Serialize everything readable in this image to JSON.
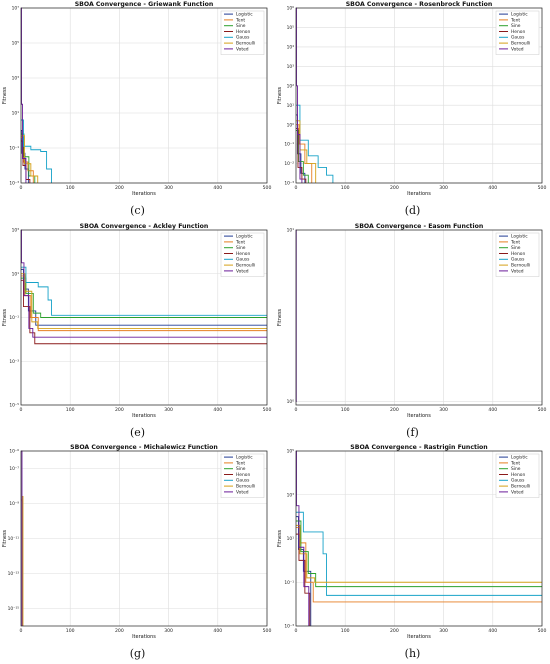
{
  "line_colors": {
    "Logistic": "#1f3a93",
    "Tent": "#e67e22",
    "Sine": "#2ca02c",
    "Henon": "#8b1a1a",
    "Gauss": "#17a2c8",
    "Bernoulli": "#d4a017",
    "Voted": "#6a1b9a"
  },
  "chart_data": [
    {
      "type": "line",
      "title": "SBOA Convergence - Griewank Function",
      "xlabel": "Iterations",
      "ylabel": "Fitness",
      "caption": "(c)",
      "yscale": "log",
      "xlim": [
        0,
        500
      ],
      "ylim_exp": [
        -3,
        7
      ],
      "xticks": [
        "0",
        "100",
        "200",
        "300",
        "400",
        "500"
      ],
      "yticks": [
        {
          "exp": -3,
          "label": "10⁻³"
        },
        {
          "exp": -1,
          "label": "10⁻¹"
        },
        {
          "exp": 1,
          "label": "10¹"
        },
        {
          "exp": 3,
          "label": "10³"
        },
        {
          "exp": 5,
          "label": "10⁵"
        },
        {
          "exp": 7,
          "label": "10⁷"
        }
      ],
      "legend": "top-right",
      "series": [
        {
          "name": "Logistic",
          "points": [
            [
              0,
              0
            ],
            [
              2,
              -1.3
            ],
            [
              8,
              -2.2
            ],
            [
              15,
              -3
            ]
          ]
        },
        {
          "name": "Tent",
          "points": [
            [
              0,
              -0.4
            ],
            [
              5,
              -1.8
            ],
            [
              14,
              -2.3
            ],
            [
              25,
              -3
            ]
          ]
        },
        {
          "name": "Sine",
          "points": [
            [
              0,
              -0.2
            ],
            [
              6,
              -1.5
            ],
            [
              16,
              -2.6
            ],
            [
              28,
              -3
            ]
          ]
        },
        {
          "name": "Henon",
          "points": [
            [
              0,
              -0.6
            ],
            [
              4,
              -2.0
            ],
            [
              10,
              -2.8
            ],
            [
              18,
              -3
            ]
          ]
        },
        {
          "name": "Gauss",
          "points": [
            [
              0,
              0.6
            ],
            [
              5,
              -0.9
            ],
            [
              20,
              -1.1
            ],
            [
              40,
              -1.2
            ],
            [
              52,
              -2.2
            ],
            [
              62,
              -3
            ]
          ]
        },
        {
          "name": "Bernoulli",
          "points": [
            [
              0,
              -0.3
            ],
            [
              7,
              -1.9
            ],
            [
              20,
              -2.6
            ],
            [
              34,
              -3
            ]
          ]
        },
        {
          "name": "Voted",
          "points": [
            [
              0,
              7
            ],
            [
              1,
              1.5
            ],
            [
              3,
              -1.6
            ],
            [
              10,
              -3
            ]
          ]
        }
      ]
    },
    {
      "type": "line",
      "title": "SBOA Convergence - Rosenbrock Function",
      "xlabel": "Iterations",
      "ylabel": "Fitness",
      "caption": "(d)",
      "yscale": "log",
      "xlim": [
        0,
        500
      ],
      "ylim_exp": [
        -3,
        6
      ],
      "xticks": [
        "0",
        "100",
        "200",
        "300",
        "400",
        "500"
      ],
      "yticks": [
        {
          "exp": -3,
          "label": "10⁻³"
        },
        {
          "exp": -2,
          "label": "10⁻²"
        },
        {
          "exp": -1,
          "label": "10⁻¹"
        },
        {
          "exp": 0,
          "label": "10⁰"
        },
        {
          "exp": 1,
          "label": "10¹"
        },
        {
          "exp": 2,
          "label": "10²"
        },
        {
          "exp": 3,
          "label": "10³"
        },
        {
          "exp": 4,
          "label": "10⁴"
        },
        {
          "exp": 5,
          "label": "10⁵"
        },
        {
          "exp": 6,
          "label": "10⁶"
        }
      ],
      "legend": "top-right",
      "series": [
        {
          "name": "Logistic",
          "points": [
            [
              0,
              0.5
            ],
            [
              3,
              -1.5
            ],
            [
              10,
              -2.5
            ],
            [
              18,
              -3
            ]
          ]
        },
        {
          "name": "Tent",
          "points": [
            [
              0,
              0
            ],
            [
              6,
              -1.0
            ],
            [
              18,
              -2.0
            ],
            [
              32,
              -3
            ]
          ]
        },
        {
          "name": "Sine",
          "points": [
            [
              0,
              -0.3
            ],
            [
              5,
              -1.9
            ],
            [
              15,
              -2.6
            ],
            [
              25,
              -3
            ]
          ]
        },
        {
          "name": "Henon",
          "points": [
            [
              0,
              -0.2
            ],
            [
              4,
              -2.2
            ],
            [
              12,
              -2.8
            ],
            [
              20,
              -3
            ]
          ]
        },
        {
          "name": "Gauss",
          "points": [
            [
              0,
              1
            ],
            [
              8,
              -0.8
            ],
            [
              25,
              -1.6
            ],
            [
              45,
              -2.2
            ],
            [
              62,
              -2.6
            ],
            [
              75,
              -3
            ]
          ]
        },
        {
          "name": "Bernoulli",
          "points": [
            [
              0,
              0.2
            ],
            [
              8,
              -1.3
            ],
            [
              22,
              -2.0
            ],
            [
              40,
              -3
            ]
          ]
        },
        {
          "name": "Voted",
          "points": [
            [
              0,
              6
            ],
            [
              1,
              2
            ],
            [
              3,
              -0.5
            ],
            [
              8,
              -2.8
            ],
            [
              12,
              -3
            ]
          ]
        }
      ]
    },
    {
      "type": "line",
      "title": "SBOA Convergence - Ackley Function",
      "xlabel": "Iterations",
      "ylabel": "Fitness",
      "caption": "(e)",
      "yscale": "log",
      "xlim": [
        0,
        500
      ],
      "ylim_exp": [
        -5,
        3
      ],
      "xticks": [
        "0",
        "100",
        "200",
        "300",
        "400",
        "500"
      ],
      "yticks": [
        {
          "exp": -5,
          "label": "10⁻⁵"
        },
        {
          "exp": -3,
          "label": "10⁻³"
        },
        {
          "exp": -1,
          "label": "10⁻¹"
        },
        {
          "exp": 1,
          "label": "10¹"
        },
        {
          "exp": 3,
          "label": "10³"
        }
      ],
      "legend": "top-right",
      "series": [
        {
          "name": "Logistic",
          "points": [
            [
              0,
              1.2
            ],
            [
              5,
              0.3
            ],
            [
              15,
              -0.7
            ],
            [
              30,
              -1.35
            ],
            [
              500,
              -1.35
            ]
          ]
        },
        {
          "name": "Tent",
          "points": [
            [
              0,
              0.9
            ],
            [
              8,
              0
            ],
            [
              20,
              -1.0
            ],
            [
              35,
              -1.6
            ],
            [
              500,
              -1.6
            ]
          ]
        },
        {
          "name": "Sine",
          "points": [
            [
              0,
              0.8
            ],
            [
              10,
              0.1
            ],
            [
              25,
              -0.8
            ],
            [
              40,
              -1.0
            ],
            [
              500,
              -1.0
            ]
          ]
        },
        {
          "name": "Henon",
          "points": [
            [
              0,
              0.7
            ],
            [
              5,
              -0.5
            ],
            [
              18,
              -1.7
            ],
            [
              28,
              -2.2
            ],
            [
              500,
              -2.2
            ]
          ]
        },
        {
          "name": "Gauss",
          "points": [
            [
              0,
              1.3
            ],
            [
              10,
              0.6
            ],
            [
              35,
              0.4
            ],
            [
              55,
              -0.2
            ],
            [
              62,
              -0.9
            ],
            [
              500,
              -0.9
            ]
          ]
        },
        {
          "name": "Bernoulli",
          "points": [
            [
              0,
              1.0
            ],
            [
              8,
              0.2
            ],
            [
              22,
              -1.2
            ],
            [
              34,
              -1.5
            ],
            [
              500,
              -1.5
            ]
          ]
        },
        {
          "name": "Voted",
          "points": [
            [
              0,
              3
            ],
            [
              1,
              1.5
            ],
            [
              6,
              0
            ],
            [
              16,
              -1.5
            ],
            [
              24,
              -1.9
            ],
            [
              500,
              -1.9
            ]
          ]
        }
      ]
    },
    {
      "type": "line",
      "title": "SBOA Convergence - Easom Function",
      "xlabel": "Iterations",
      "ylabel": "Fitness",
      "caption": "(f)",
      "yscale": "log",
      "xlim": [
        0,
        500
      ],
      "ylim_exp": [
        -0.02,
        1
      ],
      "xticks": [
        "0",
        "100",
        "200",
        "300",
        "400",
        "500"
      ],
      "yticks": [
        {
          "exp": 0,
          "label": "10⁰"
        },
        {
          "exp": 1,
          "label": "10¹"
        }
      ],
      "legend": "top-right",
      "series": [
        {
          "name": "Voted",
          "points": [
            [
              0,
              0
            ],
            [
              0.5,
              1
            ],
            [
              1,
              1
            ]
          ]
        }
      ]
    },
    {
      "type": "line",
      "title": "SBOA Convergence - Michalewicz Function",
      "xlabel": "Iterations",
      "ylabel": "Fitness",
      "caption": "(g)",
      "yscale": "log",
      "xlim": [
        0,
        500
      ],
      "ylim_exp": [
        -16,
        -6
      ],
      "xticks": [
        "0",
        "100",
        "200",
        "300",
        "400",
        "500"
      ],
      "yticks": [
        {
          "exp": -15,
          "label": "10⁻¹⁵"
        },
        {
          "exp": -13,
          "label": "10⁻¹³"
        },
        {
          "exp": -11,
          "label": "10⁻¹¹"
        },
        {
          "exp": -9,
          "label": "10⁻⁹"
        },
        {
          "exp": -7,
          "label": "10⁻⁷"
        },
        {
          "exp": -6,
          "label": "10⁻⁶"
        }
      ],
      "legend": "top-right",
      "series": [
        {
          "name": "Tent",
          "points": [
            [
              0,
              -8.8
            ],
            [
              2,
              -8.9
            ],
            [
              3,
              -16
            ]
          ]
        },
        {
          "name": "Bernoulli",
          "points": [
            [
              0,
              -8.8
            ],
            [
              2,
              -8.6
            ],
            [
              4,
              -16
            ]
          ]
        },
        {
          "name": "Voted",
          "points": [
            [
              0,
              -6
            ],
            [
              1,
              -6
            ],
            [
              2,
              -16
            ]
          ]
        }
      ]
    },
    {
      "type": "line",
      "title": "SBOA Convergence - Rastrigin Function",
      "xlabel": "Iterations",
      "ylabel": "Fitness",
      "caption": "(h)",
      "yscale": "log",
      "xlim": [
        0,
        500
      ],
      "ylim_exp": [
        -3,
        5
      ],
      "xticks": [
        "0",
        "100",
        "200",
        "300",
        "400",
        "500"
      ],
      "yticks": [
        {
          "exp": -3,
          "label": "10⁻³"
        },
        {
          "exp": -1,
          "label": "10⁻¹"
        },
        {
          "exp": 1,
          "label": "10¹"
        },
        {
          "exp": 3,
          "label": "10³"
        },
        {
          "exp": 5,
          "label": "10⁵"
        }
      ],
      "legend": "top-right",
      "series": [
        {
          "name": "Logistic",
          "points": [
            [
              0,
              2
            ],
            [
              5,
              0.5
            ],
            [
              15,
              -0.5
            ],
            [
              30,
              -3
            ]
          ]
        },
        {
          "name": "Tent",
          "points": [
            [
              0,
              1.5
            ],
            [
              8,
              0.8
            ],
            [
              20,
              -1.0
            ],
            [
              35,
              -1.9
            ],
            [
              500,
              -1.9
            ]
          ]
        },
        {
          "name": "Sine",
          "points": [
            [
              0,
              1.8
            ],
            [
              10,
              0.4
            ],
            [
              25,
              -0.6
            ],
            [
              40,
              -1.2
            ],
            [
              500,
              -1.2
            ]
          ]
        },
        {
          "name": "Henon",
          "points": [
            [
              0,
              1.2
            ],
            [
              6,
              0
            ],
            [
              18,
              -1.5
            ],
            [
              28,
              -3
            ]
          ]
        },
        {
          "name": "Gauss",
          "points": [
            [
              0,
              2.2
            ],
            [
              15,
              1.3
            ],
            [
              40,
              1.3
            ],
            [
              55,
              0.3
            ],
            [
              62,
              -1.6
            ],
            [
              500,
              -1.6
            ]
          ]
        },
        {
          "name": "Bernoulli",
          "points": [
            [
              0,
              1.6
            ],
            [
              8,
              0.3
            ],
            [
              22,
              -0.8
            ],
            [
              38,
              -1.0
            ],
            [
              500,
              -1.0
            ]
          ]
        },
        {
          "name": "Voted",
          "points": [
            [
              0,
              5
            ],
            [
              1,
              2.5
            ],
            [
              6,
              0.6
            ],
            [
              16,
              -1.2
            ],
            [
              26,
              -3
            ]
          ]
        }
      ]
    }
  ]
}
